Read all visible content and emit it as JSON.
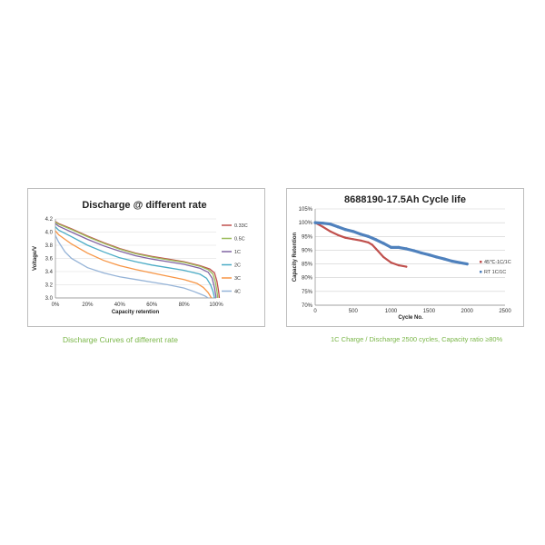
{
  "charts": {
    "left": {
      "caption": "Discharge Curves of different rate"
    },
    "right": {
      "caption": "1C Charge / Discharge 2500 cycles, Capacity ratio ≥80%"
    }
  },
  "chart_data": [
    {
      "type": "line",
      "title": "Discharge @ different rate",
      "xlabel": "Capacity retention",
      "ylabel": "Voltage/V",
      "xlim": [
        0,
        100
      ],
      "ylim": [
        3.0,
        4.2
      ],
      "x_ticks": [
        "0%",
        "20%",
        "40%",
        "60%",
        "80%",
        "100%"
      ],
      "y_ticks": [
        "3.0",
        "3.2",
        "3.4",
        "3.6",
        "3.8",
        "4.0",
        "4.2"
      ],
      "grid": "horizontal",
      "legend": "right",
      "series": [
        {
          "name": "0.33C",
          "color": "#c0504d",
          "x": [
            0,
            2,
            10,
            20,
            30,
            40,
            50,
            60,
            70,
            80,
            90,
            96,
            99,
            100.5,
            101.5,
            102
          ],
          "y": [
            4.16,
            4.13,
            4.05,
            3.94,
            3.84,
            3.75,
            3.68,
            3.63,
            3.59,
            3.55,
            3.49,
            3.44,
            3.38,
            3.25,
            3.1,
            3.0
          ]
        },
        {
          "name": "0.5C",
          "color": "#9bbb59",
          "x": [
            0,
            2,
            10,
            20,
            30,
            40,
            50,
            60,
            70,
            80,
            90,
            95,
            98,
            99.5,
            100.5,
            101
          ],
          "y": [
            4.15,
            4.12,
            4.04,
            3.93,
            3.83,
            3.74,
            3.67,
            3.62,
            3.58,
            3.54,
            3.48,
            3.43,
            3.36,
            3.24,
            3.1,
            3.0
          ]
        },
        {
          "name": "1C",
          "color": "#8064a2",
          "x": [
            0,
            2,
            10,
            20,
            30,
            40,
            50,
            60,
            70,
            80,
            90,
            95,
            97.5,
            99,
            100
          ],
          "y": [
            4.13,
            4.09,
            4.0,
            3.89,
            3.79,
            3.71,
            3.64,
            3.59,
            3.55,
            3.51,
            3.45,
            3.39,
            3.3,
            3.15,
            3.0
          ]
        },
        {
          "name": "2C",
          "color": "#4bacc6",
          "x": [
            0,
            2,
            10,
            20,
            30,
            40,
            50,
            60,
            70,
            80,
            90,
            94,
            96.5,
            98,
            99
          ],
          "y": [
            4.08,
            4.03,
            3.93,
            3.8,
            3.7,
            3.61,
            3.55,
            3.5,
            3.46,
            3.42,
            3.36,
            3.3,
            3.2,
            3.1,
            3.0
          ]
        },
        {
          "name": "3C",
          "color": "#f79646",
          "x": [
            0,
            2,
            10,
            20,
            30,
            40,
            50,
            60,
            70,
            80,
            88,
            92,
            95,
            97
          ],
          "y": [
            4.02,
            3.96,
            3.82,
            3.68,
            3.57,
            3.49,
            3.43,
            3.38,
            3.33,
            3.28,
            3.22,
            3.16,
            3.08,
            3.0
          ]
        },
        {
          "name": "4C",
          "color": "#95b3d7",
          "x": [
            0,
            2,
            6,
            10,
            20,
            30,
            40,
            50,
            60,
            70,
            80,
            86,
            90,
            93,
            95
          ],
          "y": [
            3.95,
            3.85,
            3.7,
            3.6,
            3.46,
            3.38,
            3.32,
            3.28,
            3.24,
            3.2,
            3.15,
            3.1,
            3.06,
            3.03,
            3.0
          ]
        }
      ]
    },
    {
      "type": "scatter",
      "title": "8688190-17.5Ah Cycle life",
      "xlabel": "Cycle No.",
      "ylabel": "Capacity Retention",
      "xlim": [
        0,
        2500
      ],
      "ylim": [
        70,
        105
      ],
      "x_ticks": [
        "0",
        "500",
        "1000",
        "1500",
        "2000",
        "2500"
      ],
      "y_ticks": [
        "70%",
        "75%",
        "80%",
        "85%",
        "90%",
        "95%",
        "100%",
        "105%"
      ],
      "grid": "horizontal",
      "legend": "right",
      "series": [
        {
          "name": "45℃-1C/1C",
          "color": "#c0504d",
          "x": [
            0,
            100,
            200,
            300,
            400,
            500,
            600,
            700,
            750,
            800,
            900,
            1000,
            1100,
            1200
          ],
          "y": [
            100,
            98.5,
            96.8,
            95.5,
            94.5,
            94,
            93.5,
            92.8,
            92,
            90.5,
            87.5,
            85.5,
            84.5,
            84
          ]
        },
        {
          "name": "RT 1C/1C",
          "color": "#4f81bd",
          "x": [
            0,
            100,
            200,
            300,
            400,
            500,
            600,
            700,
            800,
            900,
            1000,
            1100,
            1200,
            1300,
            1400,
            1500,
            1600,
            1700,
            1800,
            1900,
            2000
          ],
          "y": [
            100,
            99.8,
            99.5,
            98.5,
            97.5,
            96.8,
            95.8,
            95,
            93.8,
            92.5,
            91,
            91,
            90.5,
            89.8,
            89,
            88.3,
            87.5,
            86.8,
            86,
            85.5,
            85
          ]
        }
      ]
    }
  ]
}
